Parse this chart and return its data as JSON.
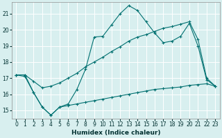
{
  "xlabel": "Humidex (Indice chaleur)",
  "bg_color": "#d8efef",
  "grid_color": "#ffffff",
  "line_color": "#007070",
  "xlim": [
    -0.5,
    23.5
  ],
  "ylim": [
    14.5,
    21.7
  ],
  "yticks": [
    15,
    16,
    17,
    18,
    19,
    20,
    21
  ],
  "xticks": [
    0,
    1,
    2,
    3,
    4,
    5,
    6,
    7,
    8,
    9,
    10,
    11,
    12,
    13,
    14,
    15,
    16,
    17,
    18,
    19,
    20,
    21,
    22,
    23
  ],
  "line1_x": [
    0,
    1,
    2,
    3,
    4,
    5,
    6,
    7,
    8,
    9,
    10,
    11,
    12,
    13,
    14,
    15,
    16,
    17,
    18,
    19,
    20,
    21,
    22,
    23
  ],
  "line1_y": [
    17.2,
    17.2,
    16.1,
    15.2,
    14.7,
    15.2,
    15.4,
    16.3,
    17.55,
    19.55,
    19.6,
    20.3,
    21.0,
    21.5,
    21.2,
    20.5,
    19.8,
    19.2,
    19.3,
    19.6,
    20.4,
    19.0,
    16.9,
    16.5
  ],
  "line2_x": [
    0,
    1,
    2,
    3,
    4,
    5,
    6,
    7,
    8,
    9,
    10,
    11,
    12,
    13,
    14,
    15,
    16,
    17,
    18,
    19,
    20,
    21,
    22,
    23
  ],
  "line2_y": [
    17.2,
    17.2,
    16.8,
    16.4,
    16.5,
    16.7,
    17.0,
    17.3,
    17.7,
    18.0,
    18.3,
    18.65,
    18.95,
    19.3,
    19.55,
    19.7,
    19.9,
    20.1,
    20.2,
    20.35,
    20.5,
    19.4,
    17.0,
    16.5
  ],
  "line3_x": [
    0,
    1,
    2,
    3,
    4,
    5,
    6,
    7,
    8,
    9,
    10,
    11,
    12,
    13,
    14,
    15,
    16,
    17,
    18,
    19,
    20,
    21,
    22,
    23
  ],
  "line3_y": [
    17.2,
    17.1,
    16.1,
    15.2,
    14.7,
    15.2,
    15.3,
    15.4,
    15.5,
    15.6,
    15.7,
    15.8,
    15.9,
    16.0,
    16.1,
    16.2,
    16.3,
    16.35,
    16.4,
    16.45,
    16.55,
    16.6,
    16.65,
    16.5
  ]
}
